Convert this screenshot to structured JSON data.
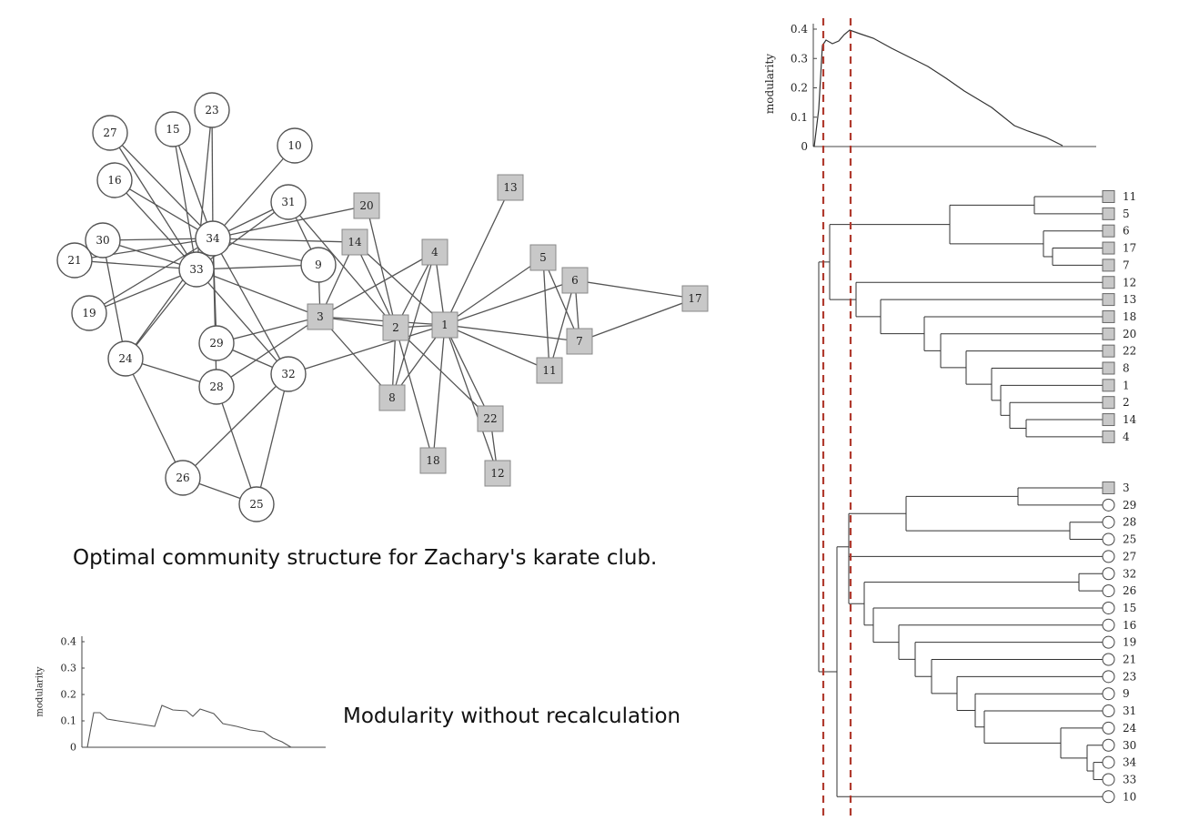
{
  "captions": {
    "network": "Optimal community structure for Zachary's karate club.",
    "modularity_small": "Modularity without recalculation"
  },
  "colors": {
    "edge": "#555555",
    "circle_fill": "#ffffff",
    "square_fill": "#c8c8c8",
    "node_stroke": "#555555",
    "cut_line": "#b03a2e",
    "curve": "#333333"
  },
  "network": {
    "circle_nodes": [
      "27",
      "15",
      "23",
      "10",
      "16",
      "31",
      "30",
      "34",
      "21",
      "33",
      "9",
      "19",
      "29",
      "24",
      "28",
      "32",
      "26",
      "25"
    ],
    "square_nodes": [
      "20",
      "13",
      "14",
      "4",
      "5",
      "6",
      "17",
      "3",
      "2",
      "1",
      "7",
      "11",
      "8",
      "22",
      "18",
      "12"
    ],
    "edges": [
      [
        "34",
        "27"
      ],
      [
        "34",
        "15"
      ],
      [
        "34",
        "23"
      ],
      [
        "34",
        "10"
      ],
      [
        "34",
        "16"
      ],
      [
        "34",
        "31"
      ],
      [
        "34",
        "30"
      ],
      [
        "34",
        "21"
      ],
      [
        "34",
        "19"
      ],
      [
        "34",
        "24"
      ],
      [
        "34",
        "9"
      ],
      [
        "34",
        "14"
      ],
      [
        "34",
        "20"
      ],
      [
        "34",
        "29"
      ],
      [
        "34",
        "28"
      ],
      [
        "34",
        "32"
      ],
      [
        "33",
        "27"
      ],
      [
        "33",
        "15"
      ],
      [
        "33",
        "23"
      ],
      [
        "33",
        "16"
      ],
      [
        "33",
        "30"
      ],
      [
        "33",
        "21"
      ],
      [
        "33",
        "19"
      ],
      [
        "33",
        "24"
      ],
      [
        "33",
        "9"
      ],
      [
        "33",
        "31"
      ],
      [
        "33",
        "3"
      ],
      [
        "33",
        "32"
      ],
      [
        "30",
        "24"
      ],
      [
        "24",
        "26"
      ],
      [
        "24",
        "28"
      ],
      [
        "26",
        "32"
      ],
      [
        "26",
        "25"
      ],
      [
        "25",
        "28"
      ],
      [
        "25",
        "32"
      ],
      [
        "29",
        "32"
      ],
      [
        "29",
        "3"
      ],
      [
        "31",
        "9"
      ],
      [
        "31",
        "2"
      ],
      [
        "9",
        "3"
      ],
      [
        "3",
        "14"
      ],
      [
        "3",
        "1"
      ],
      [
        "3",
        "2"
      ],
      [
        "3",
        "4"
      ],
      [
        "3",
        "8"
      ],
      [
        "3",
        "28"
      ],
      [
        "20",
        "2"
      ],
      [
        "14",
        "1"
      ],
      [
        "14",
        "2"
      ],
      [
        "4",
        "1"
      ],
      [
        "4",
        "2"
      ],
      [
        "4",
        "8"
      ],
      [
        "2",
        "1"
      ],
      [
        "2",
        "8"
      ],
      [
        "2",
        "18"
      ],
      [
        "2",
        "22"
      ],
      [
        "13",
        "1"
      ],
      [
        "1",
        "5"
      ],
      [
        "1",
        "6"
      ],
      [
        "1",
        "7"
      ],
      [
        "1",
        "11"
      ],
      [
        "1",
        "8"
      ],
      [
        "1",
        "18"
      ],
      [
        "1",
        "22"
      ],
      [
        "1",
        "12"
      ],
      [
        "1",
        "32"
      ],
      [
        "5",
        "7"
      ],
      [
        "5",
        "11"
      ],
      [
        "6",
        "7"
      ],
      [
        "6",
        "11"
      ],
      [
        "6",
        "17"
      ],
      [
        "7",
        "17"
      ],
      [
        "22",
        "12"
      ]
    ]
  },
  "top_chart": {
    "ylabel": "modularity",
    "yticks": [
      "0",
      "0.1",
      "0.2",
      "0.3",
      "0.4"
    ]
  },
  "small_chart": {
    "ylabel": "modularity",
    "yticks": [
      "0",
      "0.1",
      "0.2",
      "0.3",
      "0.4"
    ]
  },
  "dendrogram": {
    "leaves": [
      {
        "label": "11",
        "shape": "square"
      },
      {
        "label": "5",
        "shape": "square"
      },
      {
        "label": "6",
        "shape": "square"
      },
      {
        "label": "17",
        "shape": "square"
      },
      {
        "label": "7",
        "shape": "square"
      },
      {
        "label": "12",
        "shape": "square"
      },
      {
        "label": "13",
        "shape": "square"
      },
      {
        "label": "18",
        "shape": "square"
      },
      {
        "label": "20",
        "shape": "square"
      },
      {
        "label": "22",
        "shape": "square"
      },
      {
        "label": "8",
        "shape": "square"
      },
      {
        "label": "1",
        "shape": "square"
      },
      {
        "label": "2",
        "shape": "square"
      },
      {
        "label": "14",
        "shape": "square"
      },
      {
        "label": "4",
        "shape": "square"
      },
      {
        "label": "3",
        "shape": "square"
      },
      {
        "label": "29",
        "shape": "circle"
      },
      {
        "label": "28",
        "shape": "circle"
      },
      {
        "label": "25",
        "shape": "circle"
      },
      {
        "label": "27",
        "shape": "circle"
      },
      {
        "label": "32",
        "shape": "circle"
      },
      {
        "label": "26",
        "shape": "circle"
      },
      {
        "label": "15",
        "shape": "circle"
      },
      {
        "label": "16",
        "shape": "circle"
      },
      {
        "label": "19",
        "shape": "circle"
      },
      {
        "label": "21",
        "shape": "circle"
      },
      {
        "label": "23",
        "shape": "circle"
      },
      {
        "label": "9",
        "shape": "circle"
      },
      {
        "label": "31",
        "shape": "circle"
      },
      {
        "label": "24",
        "shape": "circle"
      },
      {
        "label": "30",
        "shape": "circle"
      },
      {
        "label": "34",
        "shape": "circle"
      },
      {
        "label": "33",
        "shape": "circle"
      },
      {
        "label": "10",
        "shape": "circle"
      }
    ]
  }
}
